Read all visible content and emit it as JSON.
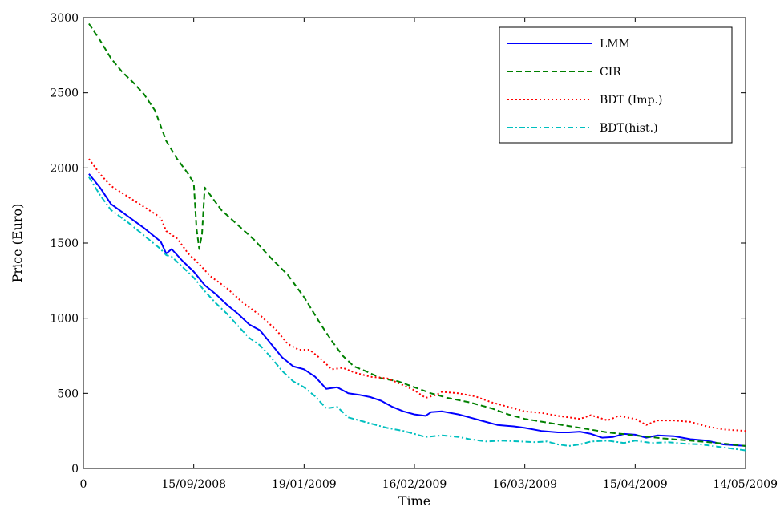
{
  "chart_data": {
    "type": "line",
    "title": "",
    "xlabel": "Time",
    "ylabel": "Price (Euro)",
    "xlim": [
      0,
      120
    ],
    "ylim": [
      0,
      3000
    ],
    "grid": false,
    "legend_position": "top-right",
    "x_ticks": [
      {
        "value": 0,
        "label": "0"
      },
      {
        "value": 20,
        "label": "15/09/2008"
      },
      {
        "value": 40,
        "label": "19/01/2009"
      },
      {
        "value": 60,
        "label": "16/02/2009"
      },
      {
        "value": 80,
        "label": "16/03/2009"
      },
      {
        "value": 100,
        "label": "15/04/2009"
      },
      {
        "value": 120,
        "label": "14/05/2009"
      }
    ],
    "y_ticks": [
      0,
      500,
      1000,
      1500,
      2000,
      2500,
      3000
    ],
    "series": [
      {
        "name": "LMM",
        "color": "#0000ff",
        "dash": "solid",
        "points": [
          [
            1,
            1960
          ],
          [
            3,
            1870
          ],
          [
            5,
            1760
          ],
          [
            8,
            1680
          ],
          [
            11,
            1600
          ],
          [
            14,
            1510
          ],
          [
            15,
            1430
          ],
          [
            16,
            1460
          ],
          [
            18,
            1380
          ],
          [
            20,
            1310
          ],
          [
            22,
            1220
          ],
          [
            24,
            1160
          ],
          [
            26,
            1090
          ],
          [
            28,
            1030
          ],
          [
            30,
            960
          ],
          [
            32,
            920
          ],
          [
            34,
            830
          ],
          [
            36,
            740
          ],
          [
            38,
            680
          ],
          [
            40,
            660
          ],
          [
            42,
            610
          ],
          [
            44,
            530
          ],
          [
            46,
            540
          ],
          [
            48,
            500
          ],
          [
            50,
            490
          ],
          [
            52,
            475
          ],
          [
            54,
            450
          ],
          [
            56,
            410
          ],
          [
            58,
            380
          ],
          [
            60,
            360
          ],
          [
            62,
            350
          ],
          [
            63,
            375
          ],
          [
            65,
            380
          ],
          [
            68,
            360
          ],
          [
            70,
            340
          ],
          [
            72,
            320
          ],
          [
            75,
            290
          ],
          [
            78,
            280
          ],
          [
            80,
            270
          ],
          [
            83,
            250
          ],
          [
            86,
            240
          ],
          [
            88,
            240
          ],
          [
            90,
            245
          ],
          [
            92,
            230
          ],
          [
            94,
            205
          ],
          [
            96,
            210
          ],
          [
            98,
            230
          ],
          [
            100,
            225
          ],
          [
            102,
            205
          ],
          [
            104,
            220
          ],
          [
            107,
            215
          ],
          [
            110,
            195
          ],
          [
            113,
            185
          ],
          [
            116,
            160
          ],
          [
            120,
            150
          ]
        ]
      },
      {
        "name": "CIR",
        "color": "#008000",
        "dash": "dashed",
        "points": [
          [
            1,
            2960
          ],
          [
            3,
            2850
          ],
          [
            5,
            2730
          ],
          [
            7,
            2640
          ],
          [
            9,
            2570
          ],
          [
            11,
            2490
          ],
          [
            13,
            2380
          ],
          [
            15,
            2180
          ],
          [
            17,
            2060
          ],
          [
            19,
            1960
          ],
          [
            20,
            1900
          ],
          [
            20.5,
            1600
          ],
          [
            21,
            1460
          ],
          [
            21.5,
            1560
          ],
          [
            22,
            1870
          ],
          [
            23,
            1820
          ],
          [
            25,
            1720
          ],
          [
            28,
            1620
          ],
          [
            31,
            1520
          ],
          [
            34,
            1400
          ],
          [
            37,
            1290
          ],
          [
            40,
            1140
          ],
          [
            43,
            960
          ],
          [
            45,
            850
          ],
          [
            47,
            750
          ],
          [
            49,
            680
          ],
          [
            51,
            650
          ],
          [
            54,
            600
          ],
          [
            57,
            580
          ],
          [
            60,
            540
          ],
          [
            63,
            500
          ],
          [
            66,
            470
          ],
          [
            70,
            440
          ],
          [
            74,
            400
          ],
          [
            77,
            360
          ],
          [
            80,
            330
          ],
          [
            85,
            300
          ],
          [
            90,
            270
          ],
          [
            95,
            240
          ],
          [
            100,
            220
          ],
          [
            105,
            200
          ],
          [
            110,
            185
          ],
          [
            115,
            170
          ],
          [
            120,
            150
          ]
        ]
      },
      {
        "name": "BDT (Imp.)",
        "color": "#ff0000",
        "dash": "dotted",
        "points": [
          [
            1,
            2060
          ],
          [
            3,
            1960
          ],
          [
            5,
            1880
          ],
          [
            8,
            1810
          ],
          [
            11,
            1740
          ],
          [
            14,
            1670
          ],
          [
            15,
            1580
          ],
          [
            17,
            1530
          ],
          [
            19,
            1430
          ],
          [
            21,
            1360
          ],
          [
            23,
            1280
          ],
          [
            26,
            1200
          ],
          [
            29,
            1100
          ],
          [
            32,
            1020
          ],
          [
            35,
            920
          ],
          [
            37,
            830
          ],
          [
            39,
            790
          ],
          [
            41,
            790
          ],
          [
            43,
            730
          ],
          [
            45,
            660
          ],
          [
            47,
            670
          ],
          [
            49,
            640
          ],
          [
            52,
            610
          ],
          [
            55,
            600
          ],
          [
            57,
            570
          ],
          [
            60,
            520
          ],
          [
            62,
            470
          ],
          [
            64,
            490
          ],
          [
            65,
            510
          ],
          [
            68,
            500
          ],
          [
            71,
            480
          ],
          [
            74,
            440
          ],
          [
            77,
            410
          ],
          [
            80,
            380
          ],
          [
            83,
            370
          ],
          [
            86,
            350
          ],
          [
            88,
            340
          ],
          [
            90,
            330
          ],
          [
            92,
            355
          ],
          [
            95,
            320
          ],
          [
            97,
            350
          ],
          [
            100,
            330
          ],
          [
            102,
            290
          ],
          [
            104,
            320
          ],
          [
            107,
            320
          ],
          [
            110,
            310
          ],
          [
            113,
            280
          ],
          [
            116,
            260
          ],
          [
            120,
            250
          ]
        ]
      },
      {
        "name": "BDT(hist.)",
        "color": "#00bfbf",
        "dash": "dashdot",
        "points": [
          [
            1,
            1940
          ],
          [
            3,
            1820
          ],
          [
            5,
            1720
          ],
          [
            8,
            1640
          ],
          [
            11,
            1550
          ],
          [
            14,
            1460
          ],
          [
            15,
            1420
          ],
          [
            16,
            1410
          ],
          [
            18,
            1340
          ],
          [
            20,
            1270
          ],
          [
            22,
            1180
          ],
          [
            24,
            1100
          ],
          [
            26,
            1030
          ],
          [
            28,
            950
          ],
          [
            30,
            870
          ],
          [
            32,
            820
          ],
          [
            34,
            740
          ],
          [
            36,
            650
          ],
          [
            38,
            580
          ],
          [
            40,
            540
          ],
          [
            42,
            480
          ],
          [
            44,
            400
          ],
          [
            46,
            410
          ],
          [
            48,
            340
          ],
          [
            50,
            320
          ],
          [
            52,
            300
          ],
          [
            55,
            270
          ],
          [
            58,
            250
          ],
          [
            60,
            230
          ],
          [
            62,
            210
          ],
          [
            65,
            220
          ],
          [
            68,
            210
          ],
          [
            70,
            195
          ],
          [
            73,
            180
          ],
          [
            76,
            185
          ],
          [
            79,
            180
          ],
          [
            82,
            175
          ],
          [
            84,
            180
          ],
          [
            86,
            160
          ],
          [
            88,
            150
          ],
          [
            90,
            160
          ],
          [
            92,
            180
          ],
          [
            95,
            185
          ],
          [
            98,
            170
          ],
          [
            100,
            185
          ],
          [
            103,
            170
          ],
          [
            106,
            175
          ],
          [
            109,
            165
          ],
          [
            112,
            160
          ],
          [
            116,
            140
          ],
          [
            120,
            120
          ]
        ]
      }
    ]
  }
}
